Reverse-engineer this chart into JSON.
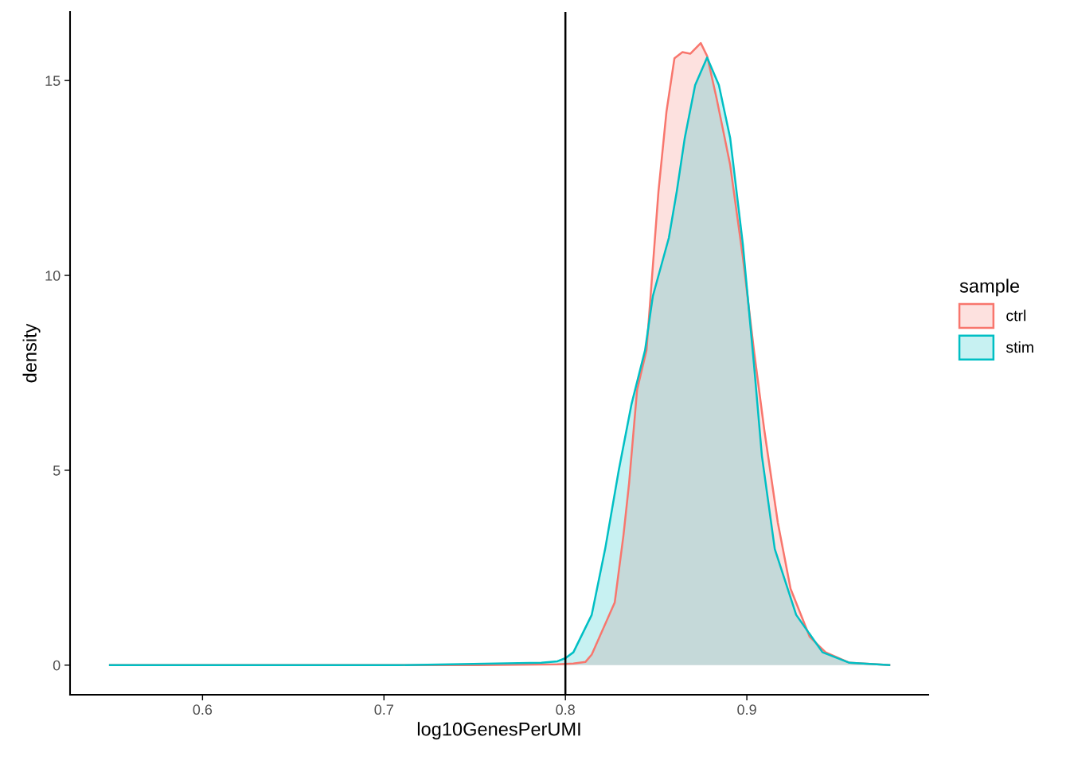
{
  "chart_data": {
    "type": "area",
    "xlabel": "log10GenesPerUMI",
    "ylabel": "density",
    "legend_title": "sample",
    "legend": "right",
    "grid": false,
    "xlim": [
      0.527,
      1.0
    ],
    "ylim": [
      -0.76,
      16.76
    ],
    "xticks": [
      0.6,
      0.7,
      0.8,
      0.9
    ],
    "yticks": [
      0,
      5,
      10,
      15
    ],
    "ref_lines": [
      {
        "axis": "x",
        "value": 0.8,
        "color": "#000000"
      }
    ],
    "series": [
      {
        "name": "ctrl",
        "color": "#f8766d",
        "x": [
          0.549,
          0.7518,
          0.7956,
          0.8044,
          0.811,
          0.8145,
          0.8272,
          0.832,
          0.8351,
          0.8395,
          0.8447,
          0.8513,
          0.8557,
          0.8601,
          0.8645,
          0.8689,
          0.8746,
          0.8781,
          0.8833,
          0.8908,
          0.8978,
          0.9039,
          0.9096,
          0.9171,
          0.9241,
          0.9346,
          0.9434,
          0.9566,
          0.9785
        ],
        "values": [
          0,
          0,
          0.02,
          0.04,
          0.08,
          0.27,
          1.61,
          3.33,
          4.67,
          7.06,
          8.08,
          12.16,
          14.2,
          15.57,
          15.73,
          15.69,
          15.96,
          15.63,
          14.55,
          12.84,
          10.47,
          8.08,
          6.04,
          3.65,
          1.96,
          0.73,
          0.33,
          0.06,
          0
        ]
      },
      {
        "name": "stim",
        "color": "#00bfc4",
        "x": [
          0.549,
          0.5982,
          0.7079,
          0.7868,
          0.7956,
          0.8,
          0.8044,
          0.8145,
          0.8219,
          0.8294,
          0.8364,
          0.8439,
          0.8482,
          0.857,
          0.8614,
          0.8658,
          0.8715,
          0.8781,
          0.8846,
          0.8908,
          0.8978,
          0.9039,
          0.9083,
          0.9154,
          0.9272,
          0.9417,
          0.9566,
          0.9785
        ],
        "values": [
          0,
          0,
          0,
          0.06,
          0.1,
          0.18,
          0.33,
          1.29,
          2.98,
          5.0,
          6.69,
          8.08,
          9.47,
          10.96,
          12.16,
          13.53,
          14.88,
          15.59,
          14.88,
          13.53,
          10.8,
          7.73,
          5.37,
          2.98,
          1.29,
          0.33,
          0.06,
          0
        ]
      }
    ]
  }
}
